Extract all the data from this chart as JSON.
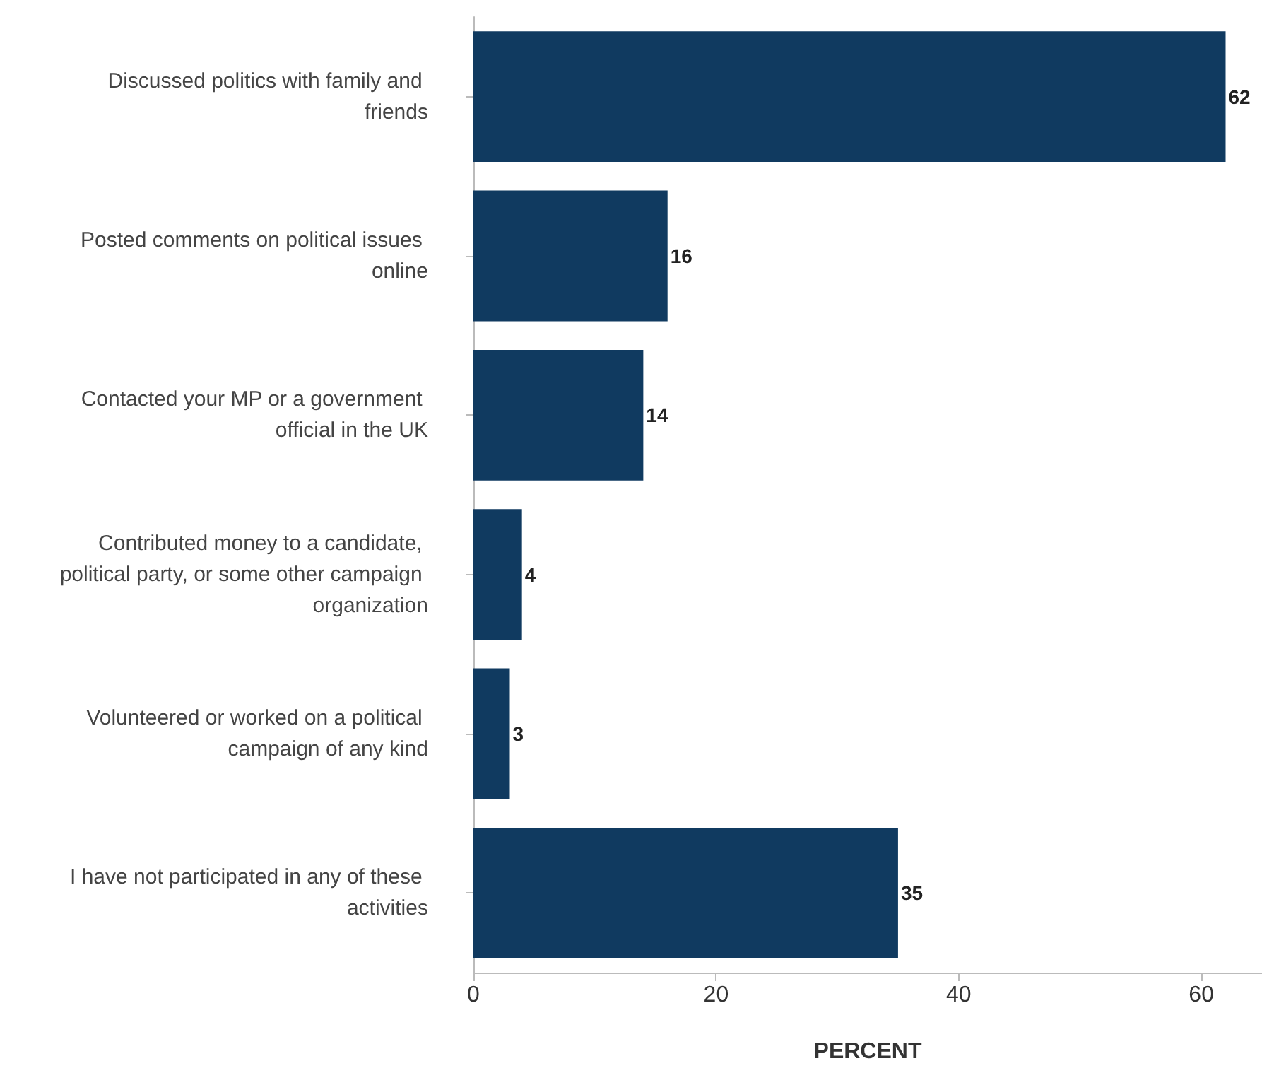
{
  "chart_data": {
    "type": "bar",
    "orientation": "horizontal",
    "xlabel": "PERCENT",
    "categories": [
      "Discussed politics with family and friends",
      "Posted comments on political issues online",
      "Contacted your MP or a government official in the UK",
      "Contributed money to a candidate, political party, or some other campaign organization",
      "Volunteered or worked on a political campaign of any kind",
      "I have not participated in any of these activities"
    ],
    "values": [
      62,
      16,
      14,
      4,
      3,
      35
    ],
    "color": "#103a60",
    "data_labels": true,
    "xlim": [
      0,
      65
    ],
    "xticks": [
      0,
      20,
      40,
      60
    ],
    "grid": false
  }
}
